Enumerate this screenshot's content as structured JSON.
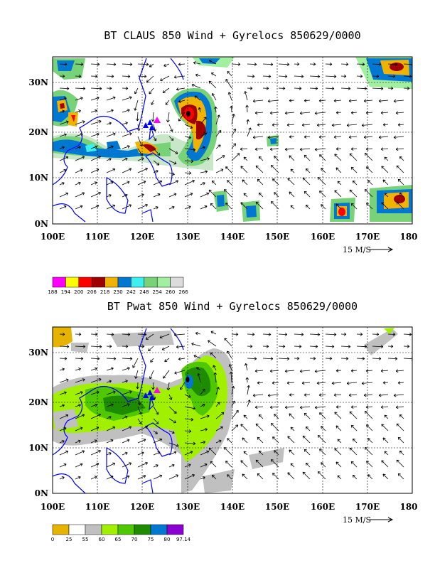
{
  "panels": [
    {
      "id": "claus",
      "title": "BT CLAUS 850 Wind + Gyrelocs 850629/0000",
      "lat_ticks": [
        "30N",
        "20N",
        "10N",
        "0N"
      ],
      "lon_ticks": [
        "100E",
        "110E",
        "120E",
        "130E",
        "140E",
        "150E",
        "160E",
        "170E",
        "180"
      ],
      "reference_vector": "15 M/S",
      "colorbar": {
        "labels": [
          "188",
          "194",
          "200",
          "206",
          "218",
          "230",
          "242",
          "248",
          "254",
          "260",
          "266"
        ],
        "colors": [
          "#ff00ff",
          "#ffff00",
          "#ff0000",
          "#a00000",
          "#f0b400",
          "#0078d2",
          "#3cf0f0",
          "#78d278",
          "#a0f0a0",
          "#dcdcdc"
        ]
      }
    },
    {
      "id": "pwat",
      "title": "BT Pwat 850 Wind + Gyrelocs 850629/0000",
      "lat_ticks": [
        "30N",
        "20N",
        "10N",
        "0N"
      ],
      "lon_ticks": [
        "100E",
        "110E",
        "120E",
        "130E",
        "140E",
        "150E",
        "160E",
        "170E",
        "180"
      ],
      "reference_vector": "15 M/S",
      "colorbar": {
        "labels": [
          "0",
          "25",
          "55",
          "60",
          "65",
          "70",
          "75",
          "80",
          "97.14"
        ],
        "colors": [
          "#e6b400",
          "#ffffff",
          "#c0c0c0",
          "#a0f000",
          "#50c800",
          "#1e8c00",
          "#0078d2",
          "#8c00d2"
        ]
      }
    }
  ],
  "map": {
    "lon_range": [
      100,
      180
    ],
    "lat_range": [
      0,
      35
    ],
    "gyre_marker_color": "#ff00ff",
    "typhoon_marker_color": "#0000ff",
    "coastline_color": "#0000ff"
  }
}
